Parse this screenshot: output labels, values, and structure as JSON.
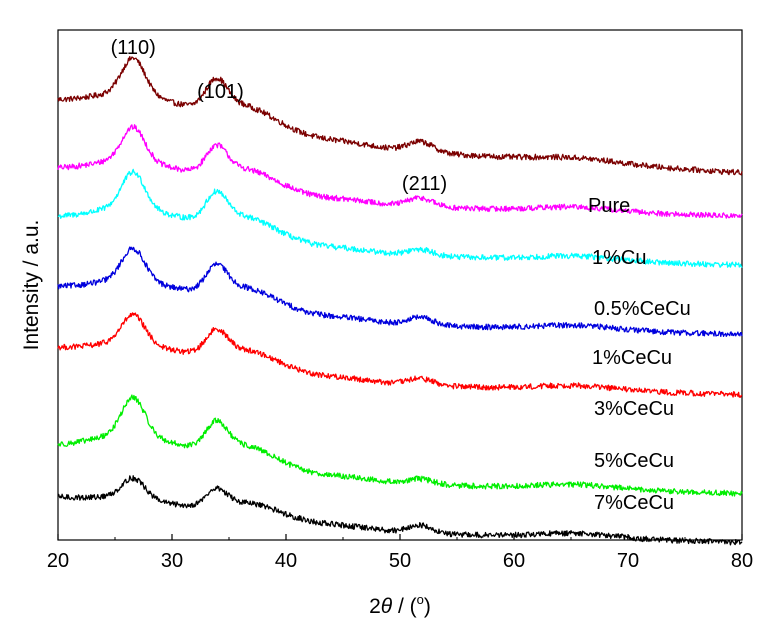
{
  "chart_data": {
    "type": "line",
    "title": "",
    "xlabel": "2θ / (°)",
    "xlabel_parts": {
      "base": "2",
      "theta": "θ",
      "sep": " / (",
      "degree": "o",
      "close": ")"
    },
    "ylabel": "Intensity / a.u.",
    "xlim": [
      20,
      80
    ],
    "x_ticks": [
      20,
      30,
      40,
      50,
      60,
      70,
      80
    ],
    "y_ticks": "none",
    "grid": false,
    "legend": "none (series labeled directly at right)",
    "peak_labels": [
      {
        "text": "(110)",
        "x": 26.6
      },
      {
        "text": "(101)",
        "x": 33.9
      },
      {
        "text": "(211)",
        "x": 51.8
      }
    ],
    "series": [
      {
        "name": "Pure",
        "color": "#7b0000",
        "baseline": 79.6,
        "tail": 0.08,
        "scale": 1.0,
        "amp_110": 12.6,
        "amp_101": 8.6,
        "amp_211": 2.0,
        "noise": 0.55,
        "start": 0.5
      },
      {
        "name": "1%Cu",
        "color": "#ff00ff",
        "baseline": 67.6,
        "tail": 0.0,
        "scale": 1.0,
        "amp_110": 11.8,
        "amp_101": 7.8,
        "amp_211": 1.7,
        "noise": 0.55,
        "start": -0.8
      },
      {
        "name": "0.5%CeCu",
        "color": "#00ffff",
        "baseline": 57.8,
        "tail": 0.0,
        "scale": 1.0,
        "amp_110": 12.6,
        "amp_101": 8.2,
        "amp_211": 1.2,
        "noise": 0.55,
        "start": -0.6
      },
      {
        "name": "1%CeCu",
        "color": "#0000dd",
        "baseline": 44.0,
        "tail": 0.0,
        "scale": 1.0,
        "amp_110": 11.2,
        "amp_101": 7.7,
        "amp_211": 1.5,
        "noise": 0.55,
        "start": -0.4
      },
      {
        "name": "3%CeCu",
        "color": "#ff0000",
        "baseline": 32.6,
        "tail": 0.0,
        "scale": 1.0,
        "amp_110": 10.0,
        "amp_101": 7.0,
        "amp_211": 1.3,
        "noise": 0.55,
        "start": -0.8
      },
      {
        "name": "5%CeCu",
        "color": "#00ee00",
        "baseline": 12.4,
        "tail": 0.0,
        "scale": 1.0,
        "amp_110": 13.2,
        "amp_101": 8.0,
        "amp_211": 1.0,
        "noise": 0.55,
        "start": 0.0
      },
      {
        "name": "7%CeCu",
        "color": "#000000",
        "baseline": 2.8,
        "tail": 0.0,
        "scale": 1.0,
        "amp_110": 7.0,
        "amp_101": 5.2,
        "amp_211": 1.5,
        "noise": 0.55,
        "start": 0.0
      }
    ]
  }
}
